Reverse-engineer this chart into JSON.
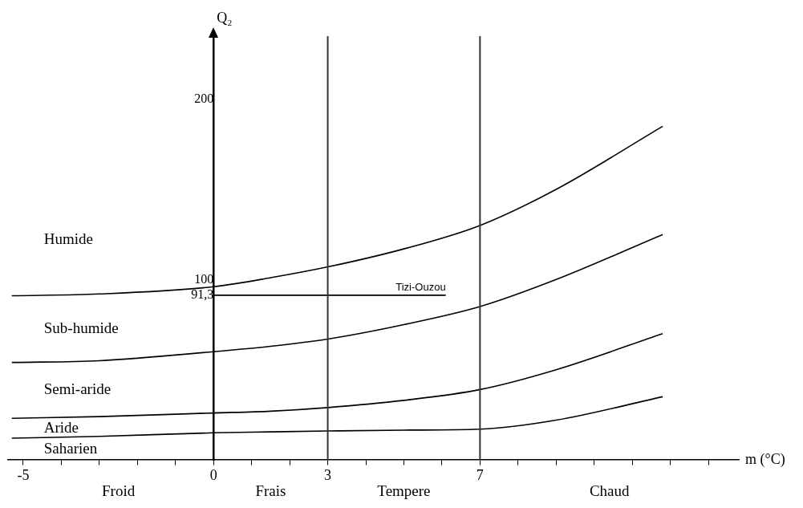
{
  "chart_data": {
    "type": "line",
    "xlabel": "m (°C)",
    "ylabel": "Q₂",
    "xlim": [
      -5.4,
      13.8
    ],
    "ylim": [
      0,
      235
    ],
    "xticks": [
      -5,
      {
        "value": -4,
        "label": null
      },
      {
        "value": -3,
        "label": null
      },
      {
        "value": -2,
        "label": null
      },
      {
        "value": -1,
        "label": null
      },
      0,
      {
        "value": 1,
        "label": null
      },
      {
        "value": 2,
        "label": null
      },
      3,
      {
        "value": 4,
        "label": null
      },
      {
        "value": 5,
        "label": null
      },
      {
        "value": 6,
        "label": null
      },
      7,
      {
        "value": 8,
        "label": null
      },
      {
        "value": 9,
        "label": null
      },
      {
        "value": 10,
        "label": null
      },
      {
        "value": 11,
        "label": null
      },
      {
        "value": 12,
        "label": null
      },
      {
        "value": 13,
        "label": null
      }
    ],
    "yticks": [
      {
        "value": 91.3,
        "label": "91,3"
      },
      100,
      200
    ],
    "series": [
      {
        "color": "#000000",
        "x": [
          -5.3,
          -3,
          0,
          1.5,
          3,
          5,
          7,
          9,
          11.8
        ],
        "values": [
          91,
          92,
          96,
          101,
          107,
          117,
          130,
          150,
          185
        ]
      },
      {
        "color": "#000000",
        "x": [
          -5.3,
          -3,
          0,
          1.5,
          3,
          5,
          7,
          9,
          11.8
        ],
        "values": [
          54,
          55,
          60,
          63,
          67,
          75,
          85,
          100,
          125
        ]
      },
      {
        "color": "#000000",
        "x": [
          -5.3,
          -3,
          0,
          1.5,
          3,
          5,
          7,
          9,
          11.8
        ],
        "values": [
          23,
          24,
          26,
          27,
          29,
          33,
          39,
          50,
          70
        ]
      },
      {
        "color": "#000000",
        "x": [
          -5.3,
          -3,
          0,
          1.5,
          3,
          5,
          7,
          9,
          11.8
        ],
        "values": [
          12,
          13,
          15,
          15.5,
          16,
          16.5,
          17,
          22,
          35
        ]
      },
      {
        "name": "Tizi-Ouzou",
        "color": "#000000",
        "x": [
          0,
          6.1
        ],
        "values": [
          91.3,
          91.3
        ]
      }
    ],
    "ref_lines": [
      {
        "axis": "x",
        "value": 3,
        "color": "#333333"
      },
      {
        "axis": "x",
        "value": 7,
        "color": "#333333"
      }
    ],
    "annotations": [
      "Humide",
      "Sub-humide",
      "Semi-aride",
      "Aride",
      "Saharien",
      "Froid",
      "Frais",
      "Tempere",
      "Chaud"
    ],
    "grid": false,
    "legend": false,
    "marker": "none",
    "line_style": "solid"
  }
}
